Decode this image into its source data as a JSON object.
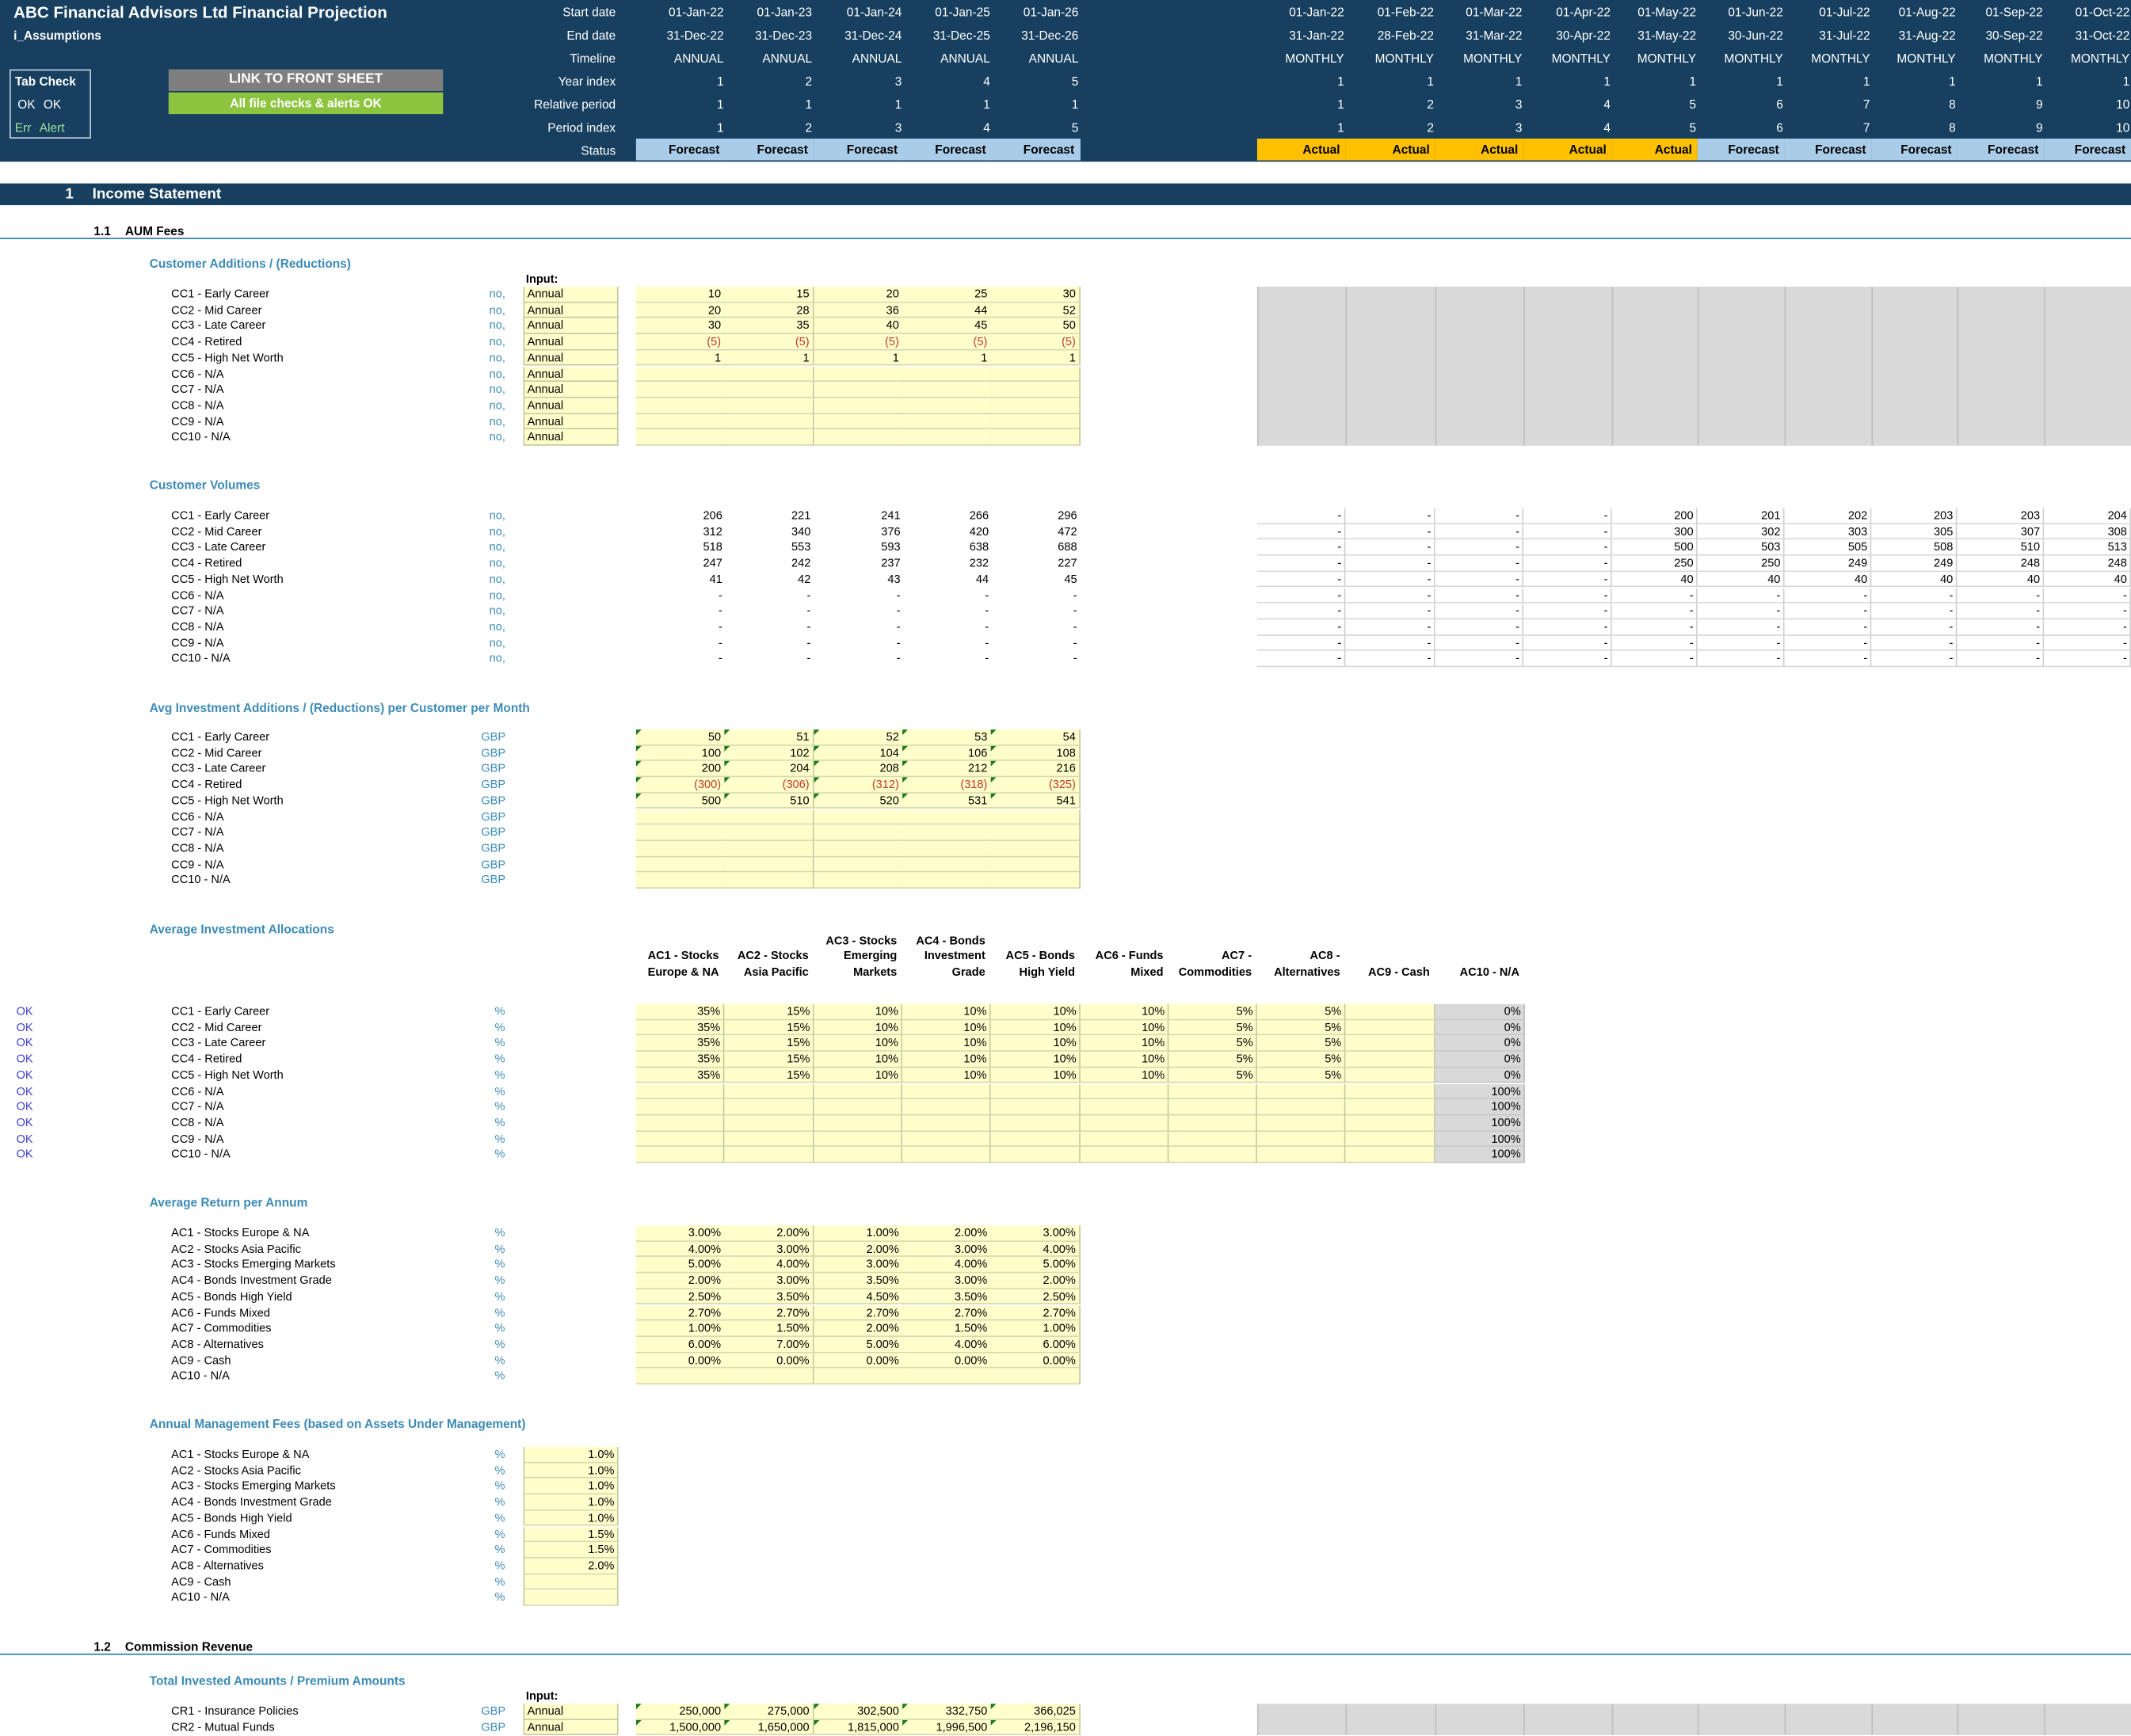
{
  "header": {
    "app_title": "ABC Financial Advisors Ltd Financial Projection",
    "sheet_name": "i_Assumptions",
    "row_labels": [
      "Start date",
      "End date",
      "Timeline",
      "Year index",
      "Relative period",
      "Period index",
      "Status"
    ],
    "tab_check": {
      "title": "Tab Check",
      "ok_code": "OK",
      "ok_text": "OK",
      "err_code": "Err",
      "err_text": "Alert"
    },
    "link_button": "LINK TO FRONT SHEET",
    "checks_status": "All file checks & alerts OK",
    "annual": {
      "start": [
        "01-Jan-22",
        "01-Jan-23",
        "01-Jan-24",
        "01-Jan-25",
        "01-Jan-26"
      ],
      "end": [
        "31-Dec-22",
        "31-Dec-23",
        "31-Dec-24",
        "31-Dec-25",
        "31-Dec-26"
      ],
      "timeline": [
        "ANNUAL",
        "ANNUAL",
        "ANNUAL",
        "ANNUAL",
        "ANNUAL"
      ],
      "year_index": [
        "1",
        "2",
        "3",
        "4",
        "5"
      ],
      "relative": [
        "1",
        "1",
        "1",
        "1",
        "1"
      ],
      "period_index": [
        "1",
        "2",
        "3",
        "4",
        "5"
      ],
      "status": [
        "Forecast",
        "Forecast",
        "Forecast",
        "Forecast",
        "Forecast"
      ]
    },
    "monthly": {
      "start": [
        "01-Jan-22",
        "01-Feb-22",
        "01-Mar-22",
        "01-Apr-22",
        "01-May-22",
        "01-Jun-22",
        "01-Jul-22",
        "01-Aug-22",
        "01-Sep-22",
        "01-Oct-22"
      ],
      "end": [
        "31-Jan-22",
        "28-Feb-22",
        "31-Mar-22",
        "30-Apr-22",
        "31-May-22",
        "30-Jun-22",
        "31-Jul-22",
        "31-Aug-22",
        "30-Sep-22",
        "31-Oct-22"
      ],
      "timeline": [
        "MONTHLY",
        "MONTHLY",
        "MONTHLY",
        "MONTHLY",
        "MONTHLY",
        "MONTHLY",
        "MONTHLY",
        "MONTHLY",
        "MONTHLY",
        "MONTHLY"
      ],
      "year_index": [
        "1",
        "1",
        "1",
        "1",
        "1",
        "1",
        "1",
        "1",
        "1",
        "1"
      ],
      "relative": [
        "1",
        "2",
        "3",
        "4",
        "5",
        "6",
        "7",
        "8",
        "9",
        "10"
      ],
      "period_index": [
        "1",
        "2",
        "3",
        "4",
        "5",
        "6",
        "7",
        "8",
        "9",
        "10"
      ],
      "status": [
        "Actual",
        "Actual",
        "Actual",
        "Actual",
        "Actual",
        "Forecast",
        "Forecast",
        "Forecast",
        "Forecast",
        "Forecast"
      ]
    }
  },
  "section": {
    "num": "1",
    "title": "Income Statement"
  },
  "sub1": {
    "num": "1.1",
    "title": "AUM Fees"
  },
  "sub2": {
    "num": "1.2",
    "title": "Commission Revenue"
  },
  "customer_labels": [
    "CC1 - Early Career",
    "CC2 - Mid Career",
    "CC3 - Late Career",
    "CC4 - Retired",
    "CC5 - High Net Worth",
    "CC6 - N/A",
    "CC7 - N/A",
    "CC8 - N/A",
    "CC9 - N/A",
    "CC10 - N/A"
  ],
  "asset_labels": [
    "AC1 - Stocks Europe & NA",
    "AC2 - Stocks Asia Pacific",
    "AC3 - Stocks Emerging Markets",
    "AC4 - Bonds Investment Grade",
    "AC5 - Bonds High Yield",
    "AC6 - Funds Mixed",
    "AC7 - Commodities",
    "AC8 - Alternatives",
    "AC9 - Cash",
    "AC10 - N/A"
  ],
  "input_label": "Input:",
  "annual_word": "Annual",
  "blocks": {
    "additions": {
      "title": "Customer Additions / (Reductions)",
      "unit": "no,",
      "values": [
        [
          "10",
          "15",
          "20",
          "25",
          "30"
        ],
        [
          "20",
          "28",
          "36",
          "44",
          "52"
        ],
        [
          "30",
          "35",
          "40",
          "45",
          "50"
        ],
        [
          "(5)",
          "(5)",
          "(5)",
          "(5)",
          "(5)"
        ],
        [
          "1",
          "1",
          "1",
          "1",
          "1"
        ],
        [
          "",
          "",
          "",
          "",
          ""
        ],
        [
          "",
          "",
          "",
          "",
          ""
        ],
        [
          "",
          "",
          "",
          "",
          ""
        ],
        [
          "",
          "",
          "",
          "",
          ""
        ],
        [
          "",
          "",
          "",
          "",
          ""
        ]
      ]
    },
    "volumes": {
      "title": "Customer Volumes",
      "unit": "no,",
      "annual": [
        [
          "206",
          "221",
          "241",
          "266",
          "296"
        ],
        [
          "312",
          "340",
          "376",
          "420",
          "472"
        ],
        [
          "518",
          "553",
          "593",
          "638",
          "688"
        ],
        [
          "247",
          "242",
          "237",
          "232",
          "227"
        ],
        [
          "41",
          "42",
          "43",
          "44",
          "45"
        ],
        [
          "-",
          "-",
          "-",
          "-",
          "-"
        ],
        [
          "-",
          "-",
          "-",
          "-",
          "-"
        ],
        [
          "-",
          "-",
          "-",
          "-",
          "-"
        ],
        [
          "-",
          "-",
          "-",
          "-",
          "-"
        ],
        [
          "-",
          "-",
          "-",
          "-",
          "-"
        ]
      ],
      "monthly": [
        [
          "-",
          "-",
          "-",
          "-",
          "200",
          "201",
          "202",
          "203",
          "203",
          "204"
        ],
        [
          "-",
          "-",
          "-",
          "-",
          "300",
          "302",
          "303",
          "305",
          "307",
          "308"
        ],
        [
          "-",
          "-",
          "-",
          "-",
          "500",
          "503",
          "505",
          "508",
          "510",
          "513"
        ],
        [
          "-",
          "-",
          "-",
          "-",
          "250",
          "250",
          "249",
          "249",
          "248",
          "248"
        ],
        [
          "-",
          "-",
          "-",
          "-",
          "40",
          "40",
          "40",
          "40",
          "40",
          "40"
        ],
        [
          "-",
          "-",
          "-",
          "-",
          "-",
          "-",
          "-",
          "-",
          "-",
          "-"
        ],
        [
          "-",
          "-",
          "-",
          "-",
          "-",
          "-",
          "-",
          "-",
          "-",
          "-"
        ],
        [
          "-",
          "-",
          "-",
          "-",
          "-",
          "-",
          "-",
          "-",
          "-",
          "-"
        ],
        [
          "-",
          "-",
          "-",
          "-",
          "-",
          "-",
          "-",
          "-",
          "-",
          "-"
        ],
        [
          "-",
          "-",
          "-",
          "-",
          "-",
          "-",
          "-",
          "-",
          "-",
          "-"
        ]
      ]
    },
    "avg_invest": {
      "title": "Avg Investment Additions / (Reductions) per Customer per Month",
      "unit": "GBP",
      "values": [
        [
          "50",
          "51",
          "52",
          "53",
          "54"
        ],
        [
          "100",
          "102",
          "104",
          "106",
          "108"
        ],
        [
          "200",
          "204",
          "208",
          "212",
          "216"
        ],
        [
          "(300)",
          "(306)",
          "(312)",
          "(318)",
          "(325)"
        ],
        [
          "500",
          "510",
          "520",
          "531",
          "541"
        ],
        [
          "",
          "",
          "",
          "",
          ""
        ],
        [
          "",
          "",
          "",
          "",
          ""
        ],
        [
          "",
          "",
          "",
          "",
          ""
        ],
        [
          "",
          "",
          "",
          "",
          ""
        ],
        [
          "",
          "",
          "",
          "",
          ""
        ]
      ]
    },
    "allocations": {
      "title": "Average Investment Allocations",
      "unit": "%",
      "check": "OK",
      "col_heads": [
        [
          "AC1 - Stocks",
          "Europe & NA"
        ],
        [
          "AC2 - Stocks",
          "Asia Pacific"
        ],
        [
          "AC3 - Stocks",
          "Emerging",
          "Markets"
        ],
        [
          "AC4 - Bonds",
          "Investment",
          "Grade"
        ],
        [
          "AC5 - Bonds",
          "High Yield"
        ],
        [
          "AC6 - Funds",
          "Mixed"
        ],
        [
          "AC7 -",
          "Commodities"
        ],
        [
          "AC8 -",
          "Alternatives"
        ],
        [
          "AC9 - Cash"
        ],
        [
          "AC10 - N/A"
        ]
      ],
      "values": [
        [
          "35%",
          "15%",
          "10%",
          "10%",
          "10%",
          "10%",
          "5%",
          "5%",
          "",
          "0%"
        ],
        [
          "35%",
          "15%",
          "10%",
          "10%",
          "10%",
          "10%",
          "5%",
          "5%",
          "",
          "0%"
        ],
        [
          "35%",
          "15%",
          "10%",
          "10%",
          "10%",
          "10%",
          "5%",
          "5%",
          "",
          "0%"
        ],
        [
          "35%",
          "15%",
          "10%",
          "10%",
          "10%",
          "10%",
          "5%",
          "5%",
          "",
          "0%"
        ],
        [
          "35%",
          "15%",
          "10%",
          "10%",
          "10%",
          "10%",
          "5%",
          "5%",
          "",
          "0%"
        ],
        [
          "",
          "",
          "",
          "",
          "",
          "",
          "",
          "",
          "",
          "100%"
        ],
        [
          "",
          "",
          "",
          "",
          "",
          "",
          "",
          "",
          "",
          "100%"
        ],
        [
          "",
          "",
          "",
          "",
          "",
          "",
          "",
          "",
          "",
          "100%"
        ],
        [
          "",
          "",
          "",
          "",
          "",
          "",
          "",
          "",
          "",
          "100%"
        ],
        [
          "",
          "",
          "",
          "",
          "",
          "",
          "",
          "",
          "",
          "100%"
        ]
      ]
    },
    "returns": {
      "title": "Average Return per Annum",
      "unit": "%",
      "values": [
        [
          "3.00%",
          "2.00%",
          "1.00%",
          "2.00%",
          "3.00%"
        ],
        [
          "4.00%",
          "3.00%",
          "2.00%",
          "3.00%",
          "4.00%"
        ],
        [
          "5.00%",
          "4.00%",
          "3.00%",
          "4.00%",
          "5.00%"
        ],
        [
          "2.00%",
          "3.00%",
          "3.50%",
          "3.00%",
          "2.00%"
        ],
        [
          "2.50%",
          "3.50%",
          "4.50%",
          "3.50%",
          "2.50%"
        ],
        [
          "2.70%",
          "2.70%",
          "2.70%",
          "2.70%",
          "2.70%"
        ],
        [
          "1.00%",
          "1.50%",
          "2.00%",
          "1.50%",
          "1.00%"
        ],
        [
          "6.00%",
          "7.00%",
          "5.00%",
          "4.00%",
          "6.00%"
        ],
        [
          "0.00%",
          "0.00%",
          "0.00%",
          "0.00%",
          "0.00%"
        ],
        [
          "",
          "",
          "",
          "",
          ""
        ]
      ]
    },
    "fees": {
      "title": "Annual Management Fees (based on Assets Under Management)",
      "unit": "%",
      "values": [
        "1.0%",
        "1.0%",
        "1.0%",
        "1.0%",
        "1.0%",
        "1.5%",
        "1.5%",
        "2.0%",
        "",
        ""
      ]
    },
    "invested": {
      "title": "Total Invested Amounts / Premium Amounts",
      "unit": "GBP",
      "labels": [
        "CR1 - Insurance Policies",
        "CR2 - Mutual Funds"
      ],
      "values": [
        [
          "250,000",
          "275,000",
          "302,500",
          "332,750",
          "366,025"
        ],
        [
          "1,500,000",
          "1,650,000",
          "1,815,000",
          "1,996,500",
          "2,196,150"
        ]
      ]
    }
  },
  "colors": {
    "navy": "#173f5f",
    "input": "#ffffcc",
    "grey": "#d9d9d9",
    "forecast": "#a9cde9",
    "actual": "#ffc000",
    "link": "#3d8bb7",
    "ok_green": "#8cc43f"
  }
}
